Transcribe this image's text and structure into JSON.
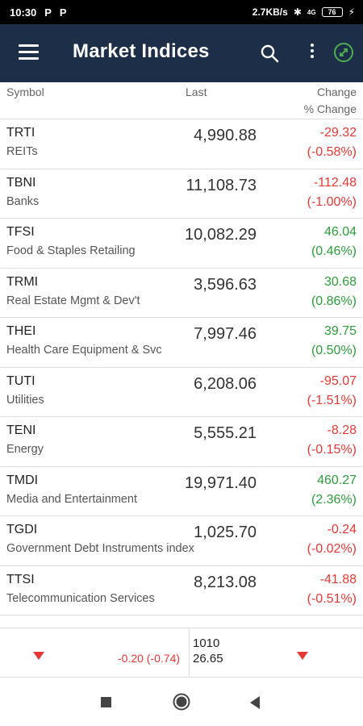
{
  "status_bar": {
    "time": "10:30",
    "app_icon_1": "P",
    "app_icon_2": "P",
    "speed": "2.7KB/s",
    "network": "4G",
    "battery": "76"
  },
  "app_bar": {
    "title": "Market Indices"
  },
  "columns": {
    "symbol": "Symbol",
    "last": "Last",
    "change": "Change",
    "pct_change": "% Change"
  },
  "colors": {
    "app_bar": "#1c2e48",
    "negative": "#e53935",
    "positive": "#2e9c3a"
  },
  "rows": [
    {
      "symbol": "TRTI",
      "name": "REITs",
      "last": "4,990.88",
      "change": "-29.32",
      "pct": "(-0.58%)",
      "dir": "neg"
    },
    {
      "symbol": "TBNI",
      "name": "Banks",
      "last": "11,108.73",
      "change": "-112.48",
      "pct": "(-1.00%)",
      "dir": "neg"
    },
    {
      "symbol": "TFSI",
      "name": "Food & Staples Retailing",
      "last": "10,082.29",
      "change": "46.04",
      "pct": "(0.46%)",
      "dir": "pos"
    },
    {
      "symbol": "TRMI",
      "name": "Real Estate Mgmt & Dev't",
      "last": "3,596.63",
      "change": "30.68",
      "pct": "(0.86%)",
      "dir": "pos"
    },
    {
      "symbol": "THEI",
      "name": "Health Care Equipment & Svc",
      "last": "7,997.46",
      "change": "39.75",
      "pct": "(0.50%)",
      "dir": "pos"
    },
    {
      "symbol": "TUTI",
      "name": "Utilities",
      "last": "6,208.06",
      "change": "-95.07",
      "pct": "(-1.51%)",
      "dir": "neg"
    },
    {
      "symbol": "TENI",
      "name": "Energy",
      "last": "5,555.21",
      "change": "-8.28",
      "pct": "(-0.15%)",
      "dir": "neg"
    },
    {
      "symbol": "TMDI",
      "name": "Media and Entertainment",
      "last": "19,971.40",
      "change": "460.27",
      "pct": "(2.36%)",
      "dir": "pos"
    },
    {
      "symbol": "TGDI",
      "name": "Government Debt Instruments index",
      "last": "1,025.70",
      "change": "-0.24",
      "pct": "(-0.02%)",
      "dir": "neg"
    },
    {
      "symbol": "TTSI",
      "name": "Telecommunication Services",
      "last": "8,213.08",
      "change": "-41.88",
      "pct": "(-0.51%)",
      "dir": "neg"
    }
  ],
  "ticker": {
    "left_change": "-0.20 (-0.74)",
    "right_value": "1010",
    "right_price": "26.65"
  }
}
